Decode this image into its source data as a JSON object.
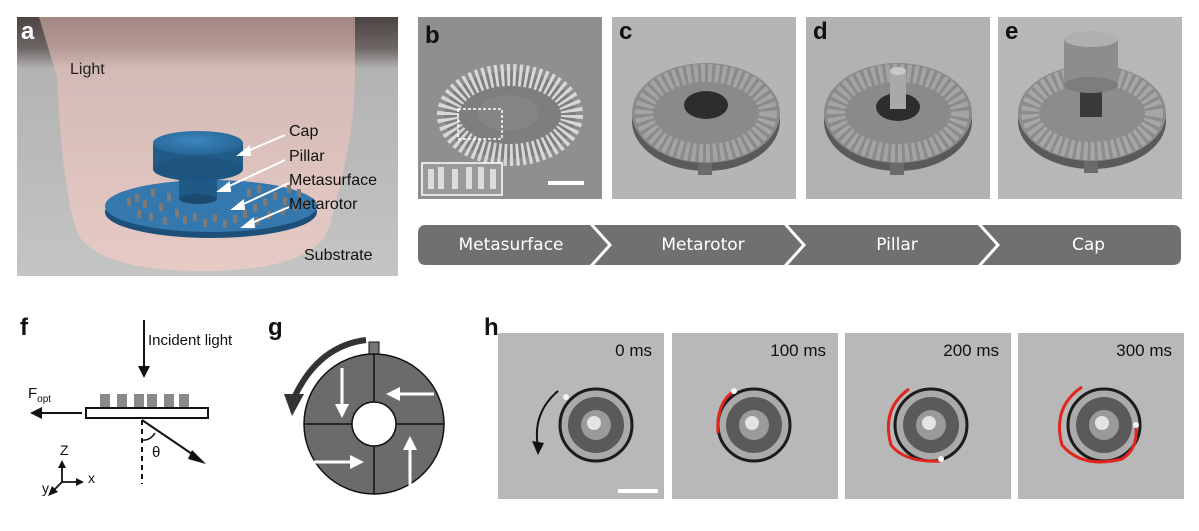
{
  "panel_a": {
    "letter": "a",
    "light_label": "Light",
    "parts": [
      "Cap",
      "Pillar",
      "Metasurface",
      "Metarotor"
    ],
    "substrate_label": "Substrate",
    "colors": {
      "device": "#2e6fa0",
      "beam": "#e9c8c2",
      "background": "#b9b9b9"
    }
  },
  "panel_b": {
    "letter": "b"
  },
  "panel_c": {
    "letter": "c"
  },
  "panel_d": {
    "letter": "d"
  },
  "panel_e": {
    "letter": "e"
  },
  "process_steps": [
    "Metasurface",
    "Metarotor",
    "Pillar",
    "Cap"
  ],
  "panel_f": {
    "letter": "f",
    "incident_label": "Incident light",
    "force_label": "F",
    "force_subscript": "opt",
    "angle_label": "θ",
    "axes": {
      "z": "Z",
      "x": "x",
      "y": "y"
    }
  },
  "panel_g": {
    "letter": "g"
  },
  "panel_h": {
    "letter": "h",
    "timestamps": [
      "0 ms",
      "100 ms",
      "200 ms",
      "300 ms"
    ],
    "trace_color": "#e0261e"
  }
}
